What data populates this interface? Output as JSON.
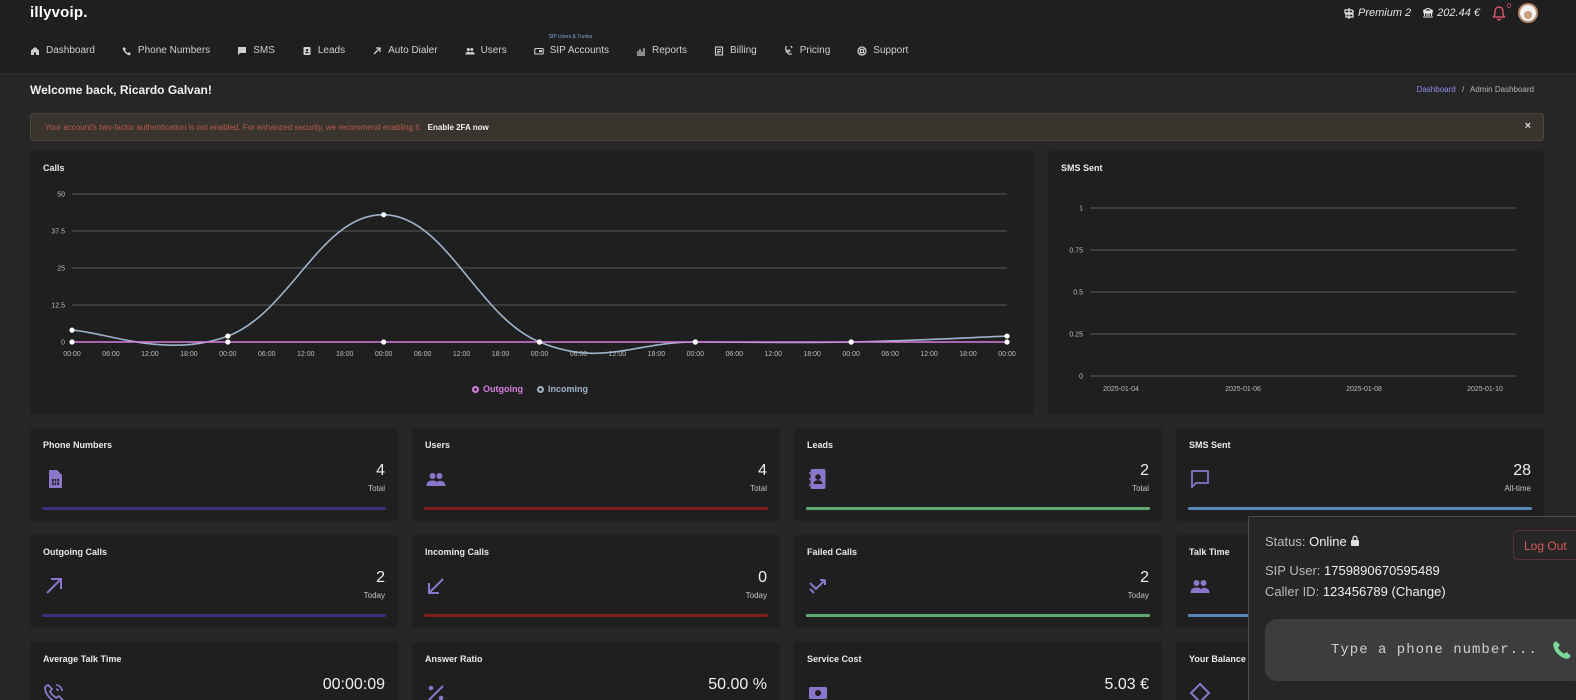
{
  "header": {
    "logo": "illyvoip.",
    "plan": "Premium 2",
    "balance": "202.44 €",
    "notifications_count": "0"
  },
  "nav": [
    {
      "label": "Dashboard",
      "icon": "home-icon"
    },
    {
      "label": "Phone Numbers",
      "icon": "phone-icon"
    },
    {
      "label": "SMS",
      "icon": "message-icon"
    },
    {
      "label": "Leads",
      "icon": "contact-book-icon"
    },
    {
      "label": "Auto Dialer",
      "icon": "arrow-up-right-icon"
    },
    {
      "label": "Users",
      "icon": "users-icon"
    },
    {
      "label": "SIP Accounts",
      "icon": "sip-icon",
      "sublabel": "SIP Users & Trunks"
    },
    {
      "label": "Reports",
      "icon": "bar-chart-icon"
    },
    {
      "label": "Billing",
      "icon": "invoice-icon"
    },
    {
      "label": "Pricing",
      "icon": "euro-icon"
    },
    {
      "label": "Support",
      "icon": "lifebuoy-icon"
    }
  ],
  "page": {
    "welcome": "Welcome back, Ricardo Galvan!",
    "breadcrumb_link": "Dashboard",
    "breadcrumb_separator": "/",
    "breadcrumb_current": "Admin Dashboard"
  },
  "alert": {
    "text": "Your account's two-factor authentication is not enabled. For enhanced security, we recommend enabling it.",
    "action": "Enable 2FA now",
    "close": "×"
  },
  "colors": {
    "outgoing": "#d67fe0",
    "incoming": "#9fb3c8",
    "purple": "#8a77c9",
    "bar_purple": "#3d2f7a",
    "bar_red": "#7d1d1d",
    "bar_green": "#5fa872",
    "bar_blue": "#5a86b8"
  },
  "chart_data": [
    {
      "type": "line",
      "title": "Calls",
      "x_tick_labels": [
        "00:00",
        "06:00",
        "12:00",
        "18:00",
        "00:00",
        "06:00",
        "12:00",
        "18:00",
        "00:00",
        "06:00",
        "12:00",
        "18:00",
        "00:00",
        "06:00",
        "12:00",
        "18:00",
        "00:00",
        "06:00",
        "12:00",
        "18:00",
        "00:00",
        "06:00",
        "12:00",
        "18:00",
        "00:00"
      ],
      "x_hours": [
        0,
        24,
        48,
        72,
        96,
        120,
        144
      ],
      "ylim": [
        0,
        50
      ],
      "y_ticks": [
        "0",
        "12.5",
        "25",
        "37.5",
        "50"
      ],
      "series": [
        {
          "name": "Outgoing",
          "values": [
            0,
            0,
            0,
            0,
            0,
            0,
            0
          ]
        },
        {
          "name": "Incoming",
          "values": [
            4,
            2,
            43,
            0,
            0,
            0,
            2
          ]
        }
      ],
      "legend": "bottom",
      "grid": true
    },
    {
      "type": "line",
      "title": "SMS Sent",
      "categories": [
        "2025-01-04",
        "2025-01-06",
        "2025-01-08",
        "2025-01-10"
      ],
      "ylim": [
        0,
        1
      ],
      "y_ticks": [
        "0",
        "0.25",
        "0.5",
        "0.75",
        "1"
      ],
      "series": [],
      "grid": true
    }
  ],
  "stats": [
    {
      "title": "Phone Numbers",
      "value": "4",
      "sub": "Total",
      "icon": "sim-card-icon",
      "bar": "purple"
    },
    {
      "title": "Users",
      "value": "4",
      "sub": "Total",
      "icon": "users-icon",
      "bar": "red"
    },
    {
      "title": "Leads",
      "value": "2",
      "sub": "Total",
      "icon": "contact-book-icon",
      "bar": "green"
    },
    {
      "title": "SMS Sent",
      "value": "28",
      "sub": "All-time",
      "icon": "chat-bubble-icon",
      "bar": "blue"
    },
    {
      "title": "Outgoing Calls",
      "value": "2",
      "sub": "Today",
      "icon": "arrow-up-right-icon",
      "bar": "purple"
    },
    {
      "title": "Incoming Calls",
      "value": "0",
      "sub": "Today",
      "icon": "arrow-down-left-icon",
      "bar": "red"
    },
    {
      "title": "Failed Calls",
      "value": "2",
      "sub": "Today",
      "icon": "missed-call-icon",
      "bar": "green"
    },
    {
      "title": "Talk Time",
      "value": "",
      "sub": "",
      "icon": "users-icon",
      "bar": "blue"
    },
    {
      "title": "Average Talk Time",
      "value": "00:00:09",
      "sub": "",
      "icon": "phone-call-icon",
      "bar": "none"
    },
    {
      "title": "Answer Ratio",
      "value": "50.00 %",
      "sub": "",
      "icon": "percent-icon",
      "bar": "none"
    },
    {
      "title": "Service Cost",
      "value": "5.03 €",
      "sub": "",
      "icon": "money-icon",
      "bar": "none"
    },
    {
      "title": "Your Balance",
      "value": "",
      "sub": "",
      "icon": "diamond-icon",
      "bar": "none"
    }
  ],
  "phone_widget": {
    "status_label": "Status:",
    "status_value": "Online",
    "sip_user_label": "SIP User:",
    "sip_user_value": "1759890670595489",
    "caller_id_label": "Caller ID:",
    "caller_id_value": "123456789 (Change)",
    "logout_label": "Log Out",
    "dial_placeholder": "Type a phone number..."
  }
}
